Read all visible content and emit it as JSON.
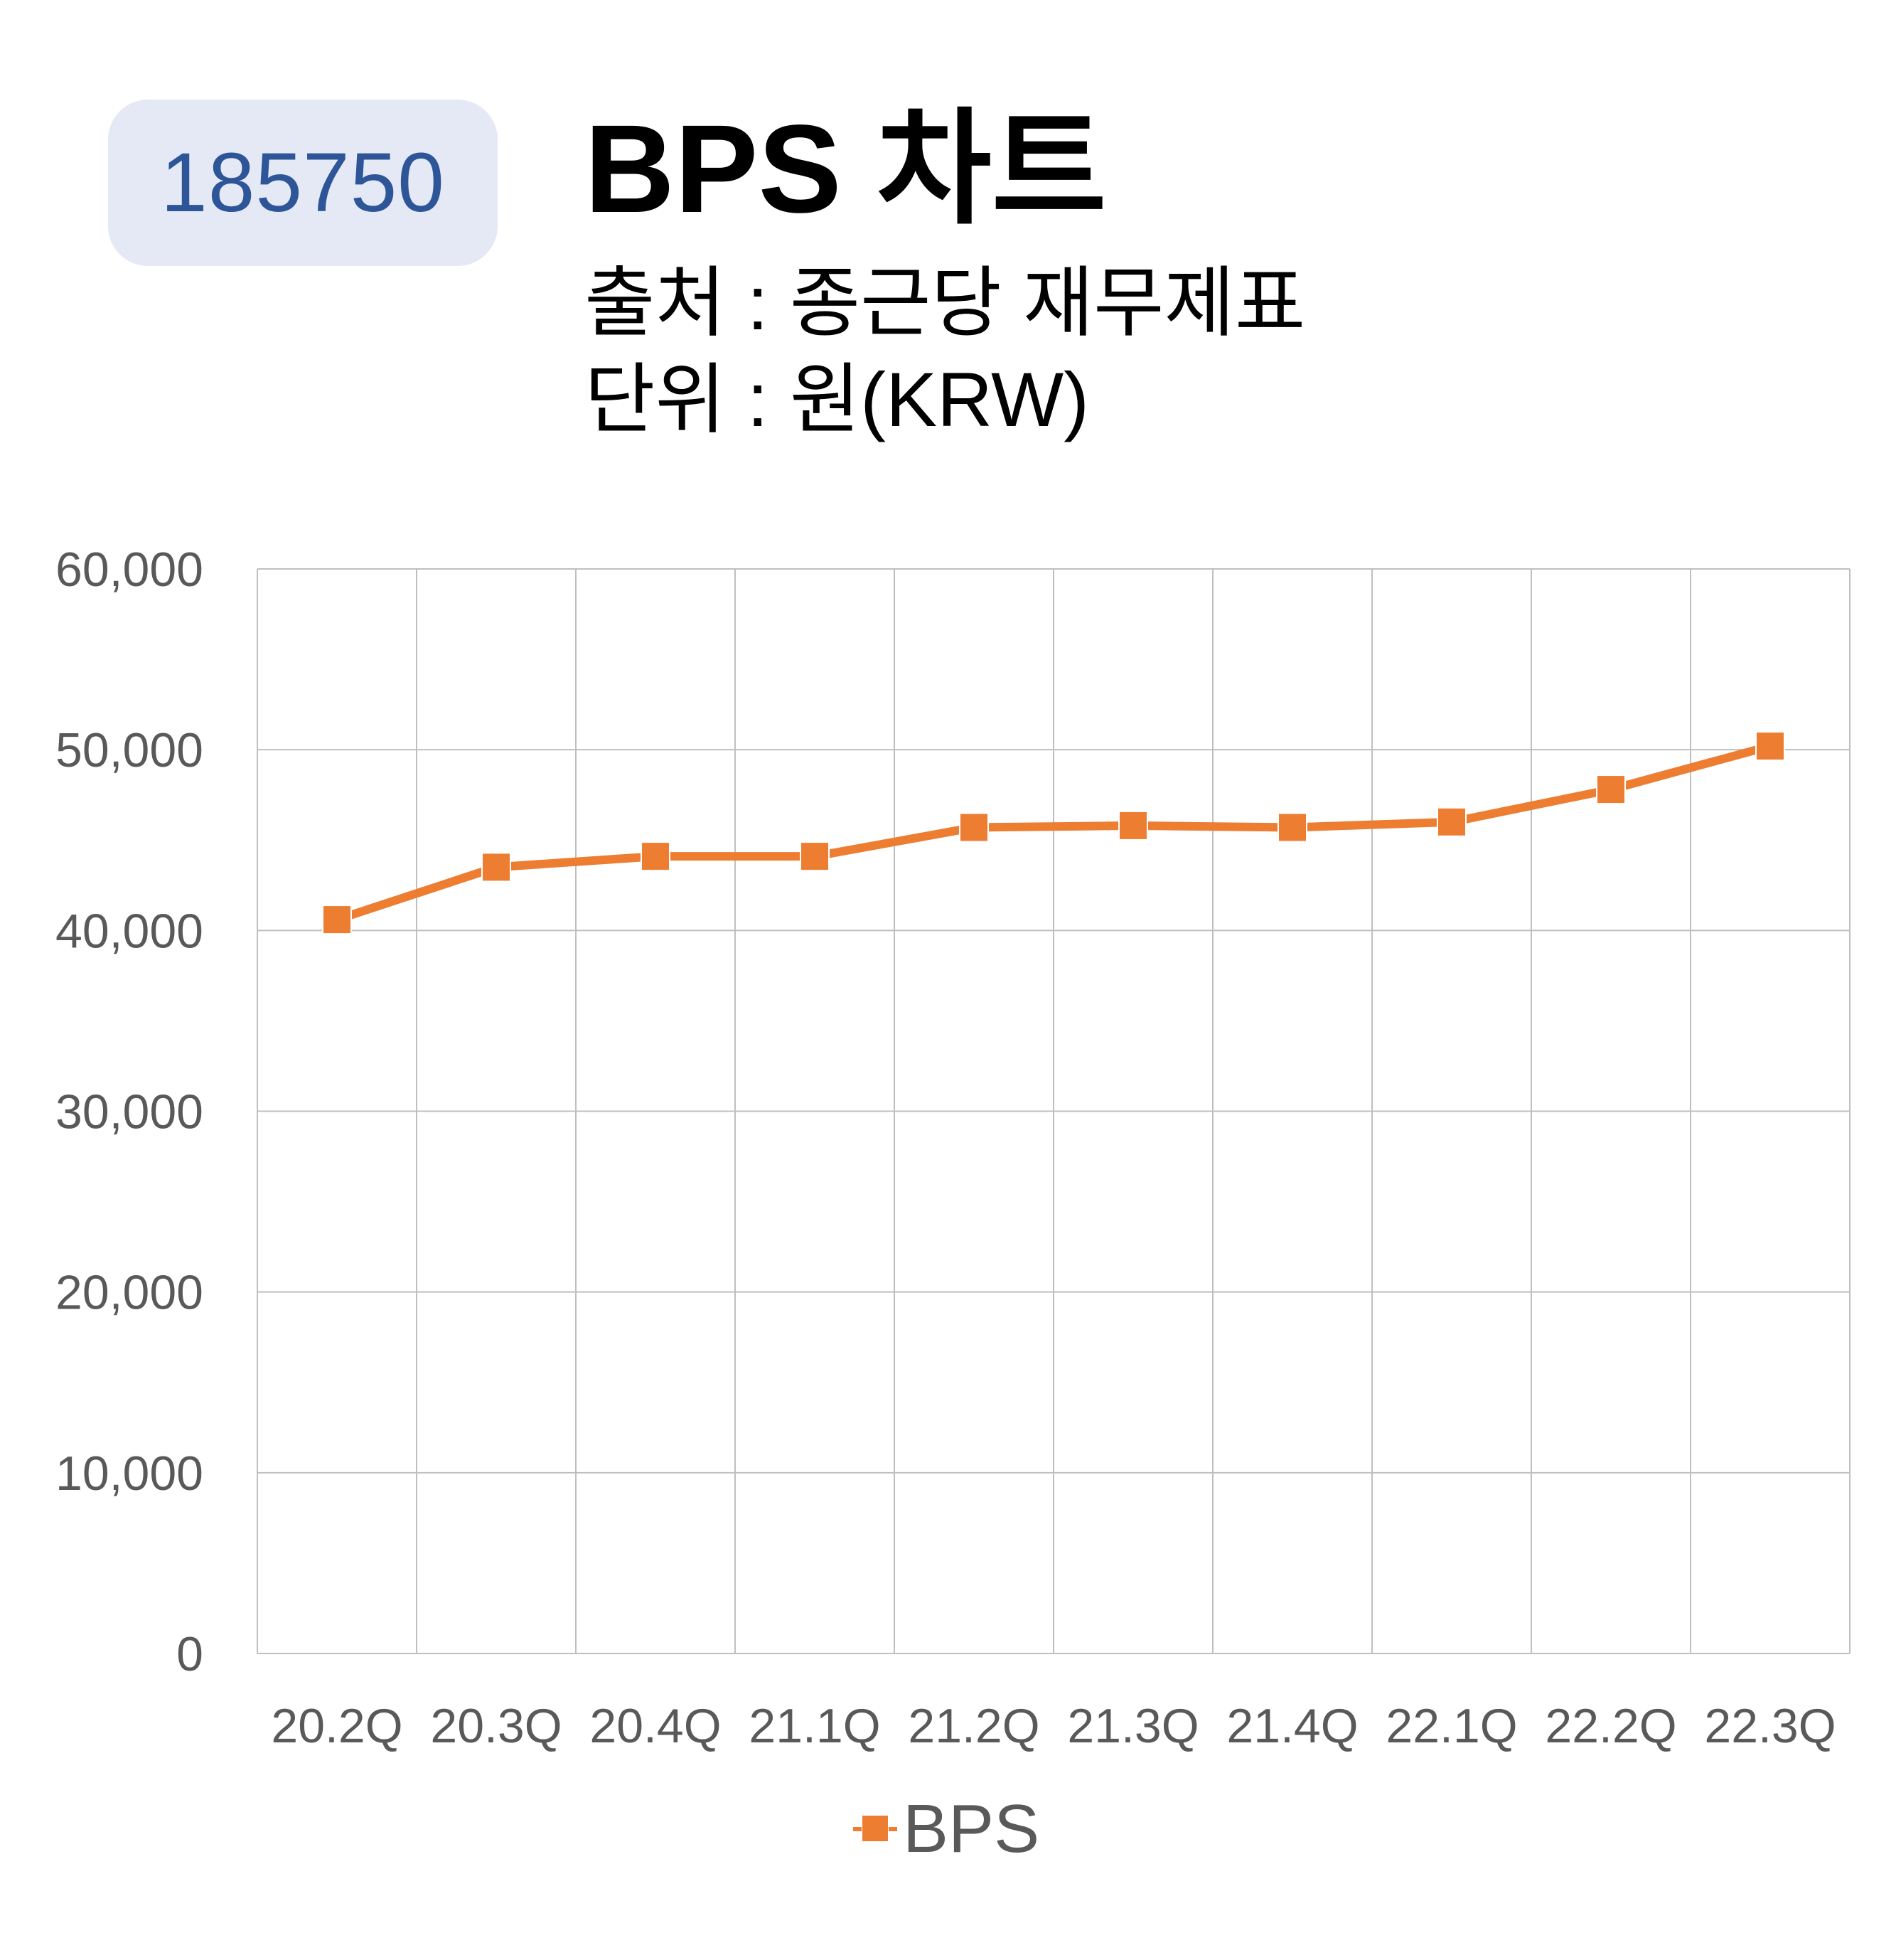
{
  "header": {
    "code": "185750",
    "title": "BPS 차트",
    "source": "출처 : 종근당 재무제표",
    "unit": "단위 : 원(KRW)"
  },
  "colors": {
    "badge_bg": "#e4e9f5",
    "badge_text": "#2e5597",
    "series": "#ed7d31",
    "grid": "#bfbfbf",
    "axis_text": "#595959"
  },
  "chart_data": {
    "type": "line",
    "categories": [
      "20.2Q",
      "20.3Q",
      "20.4Q",
      "21.1Q",
      "21.2Q",
      "21.3Q",
      "21.4Q",
      "22.1Q",
      "22.2Q",
      "22.3Q"
    ],
    "series": [
      {
        "name": "BPS",
        "values": [
          40600,
          43500,
          44100,
          44100,
          45700,
          45800,
          45700,
          46000,
          47800,
          50200
        ],
        "marker": "square",
        "color": "#ed7d31"
      }
    ],
    "y_ticks": [
      "0",
      "10,000",
      "20,000",
      "30,000",
      "40,000",
      "50,000",
      "60,000"
    ],
    "ylim": [
      0,
      60000
    ],
    "y_step": 10000,
    "grid": true,
    "legend": "bottom-center"
  }
}
